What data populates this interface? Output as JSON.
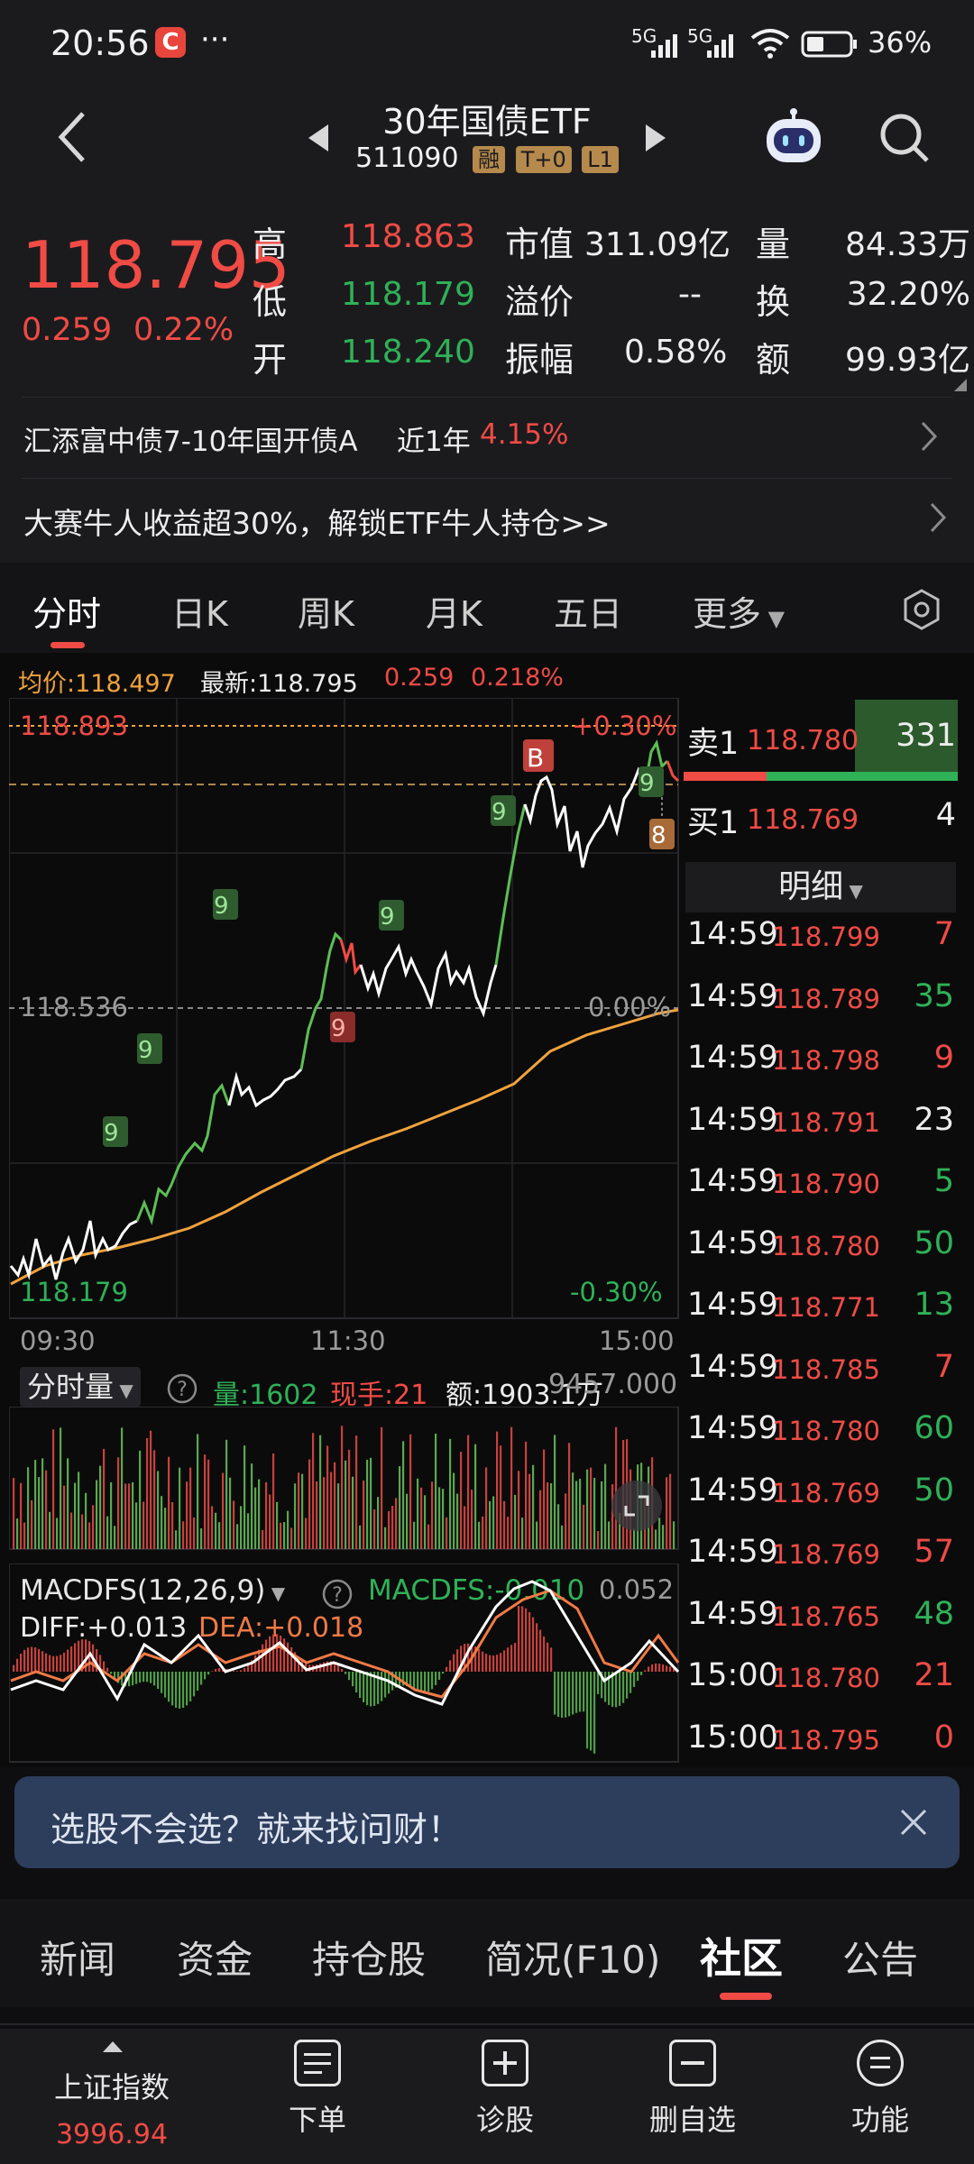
{
  "status_bar": {
    "time": "20:56",
    "app_badge": "C",
    "dots": "···",
    "net1": "5G",
    "net2": "5G",
    "battery": "36%"
  },
  "header": {
    "title": "30年国债ETF",
    "code": "511090",
    "tags": [
      "融",
      "T+0",
      "L1"
    ]
  },
  "quote": {
    "price": "118.795",
    "change": "0.259",
    "change_pct": "0.22%",
    "high_label": "高",
    "high": "118.863",
    "low_label": "低",
    "low": "118.179",
    "open_label": "开",
    "open": "118.240",
    "mcap_label": "市值",
    "mcap": "311.09亿",
    "premium_label": "溢价",
    "premium": "--",
    "amp_label": "振幅",
    "amp": "0.58%",
    "vol_label": "量",
    "vol": "84.33万",
    "turn_label": "换",
    "turn": "32.20%",
    "amt_label": "额",
    "amt": "99.93亿"
  },
  "fund_link": {
    "name": "汇添富中债7-10年国开债A",
    "period": "近1年",
    "ret": "4.15%"
  },
  "promo": {
    "text": "大赛牛人收益超30%，解锁ETF牛人持仓>>"
  },
  "tabs": [
    "分时",
    "日K",
    "周K",
    "月K",
    "五日",
    "更多"
  ],
  "chart_info": {
    "avg": "均价:118.497",
    "latest": "最新:118.795",
    "chg": "0.259",
    "chg_pct": "0.218%"
  },
  "chart_labels": {
    "top_price": "118.893",
    "top_pct": "+0.30%",
    "mid_price": "118.536",
    "mid_pct": "0.00%",
    "bot_price": "118.179",
    "bot_pct": "-0.30%",
    "t1": "09:30",
    "t2": "11:30",
    "t3": "15:00",
    "marker_b": "B",
    "marker_8": "8",
    "marker_9": "9"
  },
  "volume_panel": {
    "title": "分时量",
    "vol": "量:1602",
    "cur": "现手:21",
    "amt": "额:1903.1万",
    "max": "9457.000"
  },
  "macd_panel": {
    "title": "MACDFS(12,26,9)",
    "macd": "MACDFS:-0.010",
    "diff": "DIFF:+0.013",
    "dea": "DEA:+0.018",
    "max": "0.052"
  },
  "order_book": {
    "sell_label": "卖1",
    "sell_price": "118.780",
    "sell_vol": "331",
    "buy_label": "买1",
    "buy_price": "118.769",
    "buy_vol": "4"
  },
  "detail_header": "明细",
  "details": [
    {
      "t": "14:59",
      "p": "118.799",
      "v": "7",
      "c": "red"
    },
    {
      "t": "14:59",
      "p": "118.789",
      "v": "35",
      "c": "green"
    },
    {
      "t": "14:59",
      "p": "118.798",
      "v": "9",
      "c": "red"
    },
    {
      "t": "14:59",
      "p": "118.791",
      "v": "23",
      "c": "white"
    },
    {
      "t": "14:59",
      "p": "118.790",
      "v": "5",
      "c": "green"
    },
    {
      "t": "14:59",
      "p": "118.780",
      "v": "50",
      "c": "green"
    },
    {
      "t": "14:59",
      "p": "118.771",
      "v": "13",
      "c": "green"
    },
    {
      "t": "14:59",
      "p": "118.785",
      "v": "7",
      "c": "red"
    },
    {
      "t": "14:59",
      "p": "118.780",
      "v": "60",
      "c": "green"
    },
    {
      "t": "14:59",
      "p": "118.769",
      "v": "50",
      "c": "green"
    },
    {
      "t": "14:59",
      "p": "118.769",
      "v": "57",
      "c": "red"
    },
    {
      "t": "14:59",
      "p": "118.765",
      "v": "48",
      "c": "green"
    },
    {
      "t": "15:00",
      "p": "118.780",
      "v": "21",
      "c": "red"
    },
    {
      "t": "15:00",
      "p": "118.795",
      "v": "0",
      "c": "red"
    }
  ],
  "banner": {
    "text": "选股不会选？就来找问财！"
  },
  "bottom_tabs": [
    "新闻",
    "资金",
    "持仓股",
    "简况(F10)",
    "社区",
    "公告"
  ],
  "nav": {
    "index_name": "上证指数",
    "index_value": "3996.94",
    "items": [
      "下单",
      "诊股",
      "删自选",
      "功能"
    ]
  },
  "colors": {
    "up": "#f04b45",
    "down": "#2fb157",
    "avg_line": "#f0a23c",
    "price_line": "#ffffff",
    "banner_bg": "#2d3d5c"
  }
}
